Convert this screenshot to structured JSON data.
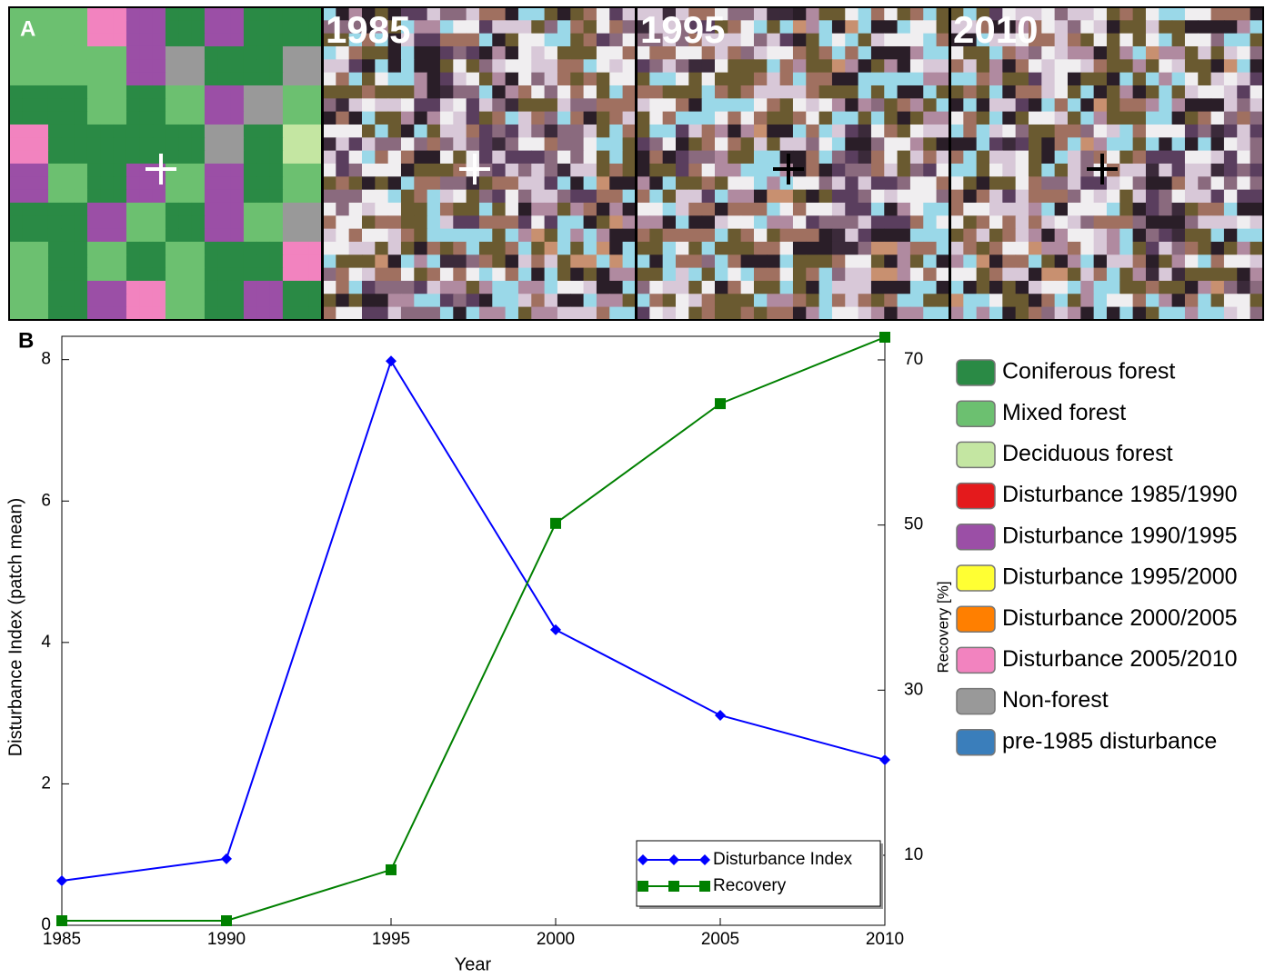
{
  "panel_a_label": "A",
  "panel_b_label": "B",
  "image_labels": [
    "1985",
    "1995",
    "2010"
  ],
  "map_legend": [
    {
      "label": "Coniferous forest",
      "color": "#2a8a45"
    },
    {
      "label": "Mixed forest",
      "color": "#6cc070"
    },
    {
      "label": "Deciduous forest",
      "color": "#c4e6a2"
    },
    {
      "label": "Disturbance 1985/1990",
      "color": "#e41a1c"
    },
    {
      "label": "Disturbance 1990/1995",
      "color": "#9b4fa6"
    },
    {
      "label": "Disturbance 1995/2000",
      "color": "#ffff33"
    },
    {
      "label": "Disturbance 2000/2005",
      "color": "#ff7f00"
    },
    {
      "label": "Disturbance 2005/2010",
      "color": "#f283bf"
    },
    {
      "label": "Non-forest",
      "color": "#999999"
    },
    {
      "label": "pre-1985 disturbance",
      "color": "#3a7ebb"
    }
  ],
  "chart_data": {
    "type": "line",
    "x_label": "Year",
    "y_label": "Disturbance Index (patch mean)",
    "y2_label": "Recovery [%]",
    "x": [
      1985,
      1990,
      1995,
      2000,
      2005,
      2010
    ],
    "xlim": [
      1985,
      2010
    ],
    "xticks": [
      1985,
      1990,
      1995,
      2000,
      2005,
      2010
    ],
    "ylim": [
      0,
      8.33
    ],
    "yticks": [
      0,
      2,
      4,
      6,
      8
    ],
    "y2lim": [
      1.52,
      72.86
    ],
    "y2ticks": [
      10,
      30,
      50,
      70
    ],
    "series": [
      {
        "name": "Disturbance Index",
        "color": "#0000ff",
        "marker": "diamond",
        "values": [
          0.63,
          0.94,
          7.98,
          4.18,
          2.97,
          2.34
        ]
      },
      {
        "name": "Recovery",
        "color": "#008000",
        "marker": "square",
        "axis": "y2",
        "values": [
          2.07,
          2.07,
          8.24,
          50.2,
          64.7,
          72.75
        ]
      }
    ]
  }
}
